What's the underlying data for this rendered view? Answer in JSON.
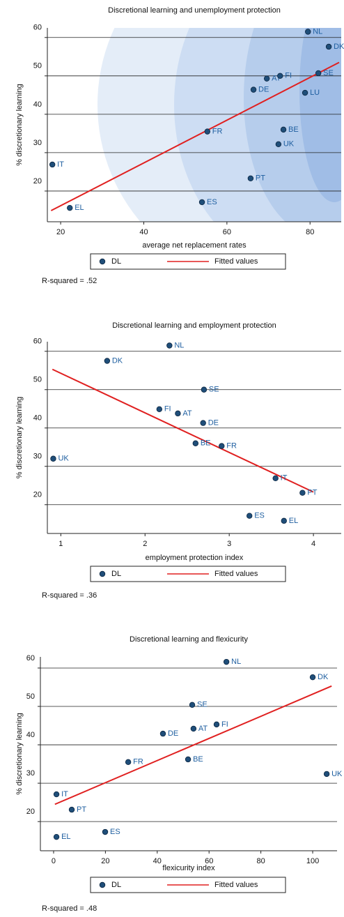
{
  "chart_data": [
    {
      "type": "scatter",
      "title": "Discretional learning and unemployment protection",
      "x_label": "average net replacement rates",
      "y_label": "% discretionary learning",
      "xlim": [
        16.8,
        87.5
      ],
      "xticks": [
        20,
        40,
        60,
        80
      ],
      "ylim": [
        12,
        62.5
      ],
      "yticks": [
        20,
        30,
        40,
        50,
        60
      ],
      "grid": true,
      "series": [
        {
          "name": "DL",
          "color": "#1f4e79",
          "labels": [
            "NL",
            "DK",
            "SE",
            "AT",
            "FI",
            "DE",
            "LU",
            "FR",
            "BE",
            "UK",
            "PT",
            "IT",
            "EL",
            "ES"
          ],
          "x": [
            79.5,
            84.5,
            82,
            69.6,
            72.8,
            66.4,
            78.8,
            55.3,
            73.6,
            72.4,
            65.7,
            18,
            22.2,
            54
          ],
          "values": [
            61.5,
            57.6,
            50.7,
            49.3,
            50,
            46.4,
            45.6,
            35.5,
            36,
            32.2,
            23.3,
            26.9,
            15.6,
            17.1
          ]
        },
        {
          "name": "Fitted values",
          "color": "#e02020",
          "x": [
            17.7,
            87
          ],
          "values": [
            14.9,
            53.5
          ]
        }
      ],
      "note": "R-squared = .52"
    },
    {
      "type": "scatter",
      "title": "Discretional learning and employment protection",
      "x_label": "employment protection index",
      "y_label": "% discretionary learning",
      "xlim": [
        0.84,
        4.33
      ],
      "xticks": [
        1,
        2,
        3,
        4
      ],
      "ylim": [
        12.5,
        62.5
      ],
      "yticks": [
        20,
        30,
        40,
        50,
        60
      ],
      "grid": true,
      "series": [
        {
          "name": "DL",
          "color": "#1f4e79",
          "labels": [
            "NL",
            "DK",
            "SE",
            "FI",
            "AT",
            "DE",
            "BE",
            "FR",
            "UK",
            "IT",
            "PT",
            "ES",
            "EL"
          ],
          "x": [
            2.29,
            1.55,
            2.7,
            2.17,
            2.39,
            2.69,
            2.6,
            2.91,
            0.91,
            3.55,
            3.87,
            3.24,
            3.65
          ],
          "values": [
            61.5,
            57.5,
            50,
            44.9,
            43.8,
            41.3,
            36,
            35.3,
            32,
            26.9,
            23.1,
            17.1,
            15.8
          ]
        },
        {
          "name": "Fitted values",
          "color": "#e02020",
          "x": [
            0.9,
            4.0
          ],
          "values": [
            55.3,
            23.3
          ]
        }
      ],
      "note": "R-squared = .36"
    },
    {
      "type": "scatter",
      "title": "Discretional learning and flexicurity",
      "x_label": "flexicurity index",
      "y_label": "% discretionary learning",
      "xlim": [
        -5.1,
        109.4
      ],
      "xticks": [
        0,
        20,
        40,
        60,
        80,
        100
      ],
      "ylim": [
        12.4,
        62.9
      ],
      "yticks": [
        20,
        30,
        40,
        50,
        60
      ],
      "grid": true,
      "series": [
        {
          "name": "DL",
          "color": "#1f4e79",
          "labels": [
            "NL",
            "DK",
            "SE",
            "FI",
            "AT",
            "DE",
            "FR",
            "BE",
            "UK",
            "IT",
            "PT",
            "EL",
            "ES"
          ],
          "x": [
            66.7,
            100,
            53.5,
            62.9,
            54,
            42.2,
            28.8,
            51.9,
            105.4,
            1.1,
            7,
            1.1,
            19.9
          ],
          "values": [
            61.6,
            57.6,
            50.4,
            45.3,
            44.2,
            42.9,
            35.5,
            36.2,
            32.4,
            27.1,
            23.1,
            16,
            17.3
          ]
        },
        {
          "name": "Fitted values",
          "color": "#e02020",
          "x": [
            0.5,
            107.3
          ],
          "values": [
            24.5,
            55.3
          ]
        }
      ],
      "note": "R-squared = .48"
    }
  ]
}
